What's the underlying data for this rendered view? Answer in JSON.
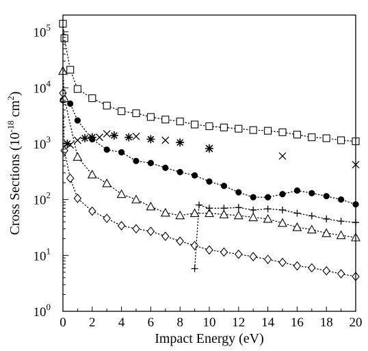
{
  "chart_data": {
    "type": "scatter",
    "title": "",
    "xlabel": "Impact Energy (eV)",
    "ylabel": {
      "prefix": "Cross Sections (10",
      "exp": "-18",
      "mid": " cm",
      "exp2": "2",
      "suffix": ")"
    },
    "xlim": [
      0,
      20
    ],
    "ylim": [
      1,
      200000
    ],
    "yscale": "log",
    "grid": false,
    "legend": "none",
    "x_ticks": [
      "0",
      "2",
      "4",
      "6",
      "8",
      "10",
      "12",
      "14",
      "16",
      "18",
      "20"
    ],
    "y_ticks": [
      {
        "base": "10",
        "exp": "0",
        "value": 1
      },
      {
        "base": "10",
        "exp": "1",
        "value": 10
      },
      {
        "base": "10",
        "exp": "2",
        "value": 100
      },
      {
        "base": "10",
        "exp": "3",
        "value": 1000
      },
      {
        "base": "10",
        "exp": "4",
        "value": 10000
      },
      {
        "base": "10",
        "exp": "5",
        "value": 100000
      }
    ],
    "series": [
      {
        "marker": "square",
        "line": "dotted",
        "points": [
          [
            0,
            140000
          ],
          [
            0.1,
            77000
          ],
          [
            0.5,
            21000
          ],
          [
            1,
            9500
          ],
          [
            2,
            6500
          ],
          [
            3,
            4800
          ],
          [
            4,
            3800
          ],
          [
            5,
            3500
          ],
          [
            6,
            3000
          ],
          [
            7,
            2700
          ],
          [
            8,
            2500
          ],
          [
            9,
            2200
          ],
          [
            10,
            2050
          ],
          [
            11,
            1950
          ],
          [
            12,
            1850
          ],
          [
            13,
            1750
          ],
          [
            14,
            1700
          ],
          [
            15,
            1600
          ],
          [
            16,
            1450
          ],
          [
            17,
            1300
          ],
          [
            18,
            1250
          ],
          [
            19,
            1150
          ],
          [
            20,
            1100
          ]
        ]
      },
      {
        "marker": "filled-circle",
        "line": "dotted",
        "points": [
          [
            0,
            6000
          ],
          [
            0.5,
            5200
          ],
          [
            1,
            2600
          ],
          [
            2,
            1200
          ],
          [
            3,
            780
          ],
          [
            4,
            700
          ],
          [
            5,
            490
          ],
          [
            6,
            450
          ],
          [
            7,
            370
          ],
          [
            8,
            310
          ],
          [
            9,
            270
          ],
          [
            10,
            210
          ],
          [
            11,
            175
          ],
          [
            12,
            135
          ],
          [
            13,
            110
          ],
          [
            14,
            110
          ],
          [
            15,
            125
          ],
          [
            16,
            145
          ],
          [
            17,
            130
          ],
          [
            18,
            115
          ],
          [
            19,
            100
          ],
          [
            20,
            82
          ]
        ]
      },
      {
        "marker": "triangle",
        "line": "dotted",
        "points": [
          [
            0,
            20000
          ],
          [
            0.1,
            6500
          ],
          [
            1,
            580
          ],
          [
            2,
            280
          ],
          [
            3,
            195
          ],
          [
            4,
            125
          ],
          [
            5,
            100
          ],
          [
            6,
            75
          ],
          [
            7,
            58
          ],
          [
            8,
            52
          ],
          [
            9,
            57
          ],
          [
            10,
            57
          ],
          [
            11,
            54
          ],
          [
            12,
            52
          ],
          [
            13,
            48
          ],
          [
            14,
            45
          ],
          [
            15,
            38
          ],
          [
            16,
            32
          ],
          [
            17,
            29
          ],
          [
            18,
            25
          ],
          [
            19,
            23
          ],
          [
            20,
            21
          ]
        ]
      },
      {
        "marker": "diamond",
        "line": "dotted",
        "points": [
          [
            0,
            8000
          ],
          [
            0.1,
            750
          ],
          [
            0.5,
            240
          ],
          [
            1,
            105
          ],
          [
            2,
            62
          ],
          [
            3,
            46
          ],
          [
            4,
            34
          ],
          [
            5,
            30
          ],
          [
            6,
            27
          ],
          [
            7,
            22
          ],
          [
            8,
            18
          ],
          [
            9,
            15
          ],
          [
            10,
            12.5
          ],
          [
            11,
            11.5
          ],
          [
            12,
            10.5
          ],
          [
            13,
            9.5
          ],
          [
            14,
            8.5
          ],
          [
            15,
            7.5
          ],
          [
            16,
            6.5
          ],
          [
            17,
            6
          ],
          [
            18,
            5.3
          ],
          [
            19,
            4.7
          ],
          [
            20,
            4.2
          ]
        ]
      },
      {
        "marker": "plus",
        "line": "dotted",
        "points": [
          [
            9,
            5.8
          ],
          [
            9.3,
            80
          ],
          [
            10,
            70
          ],
          [
            11,
            70
          ],
          [
            12,
            72
          ],
          [
            13,
            65
          ],
          [
            14,
            68
          ],
          [
            15,
            65
          ],
          [
            16,
            57
          ],
          [
            17,
            51
          ],
          [
            18,
            45
          ],
          [
            19,
            41
          ],
          [
            20,
            39
          ]
        ]
      },
      {
        "marker": "cross",
        "line": "none",
        "points": [
          [
            0.5,
            950
          ],
          [
            1,
            1150
          ],
          [
            2.5,
            1300
          ],
          [
            3,
            1500
          ],
          [
            5,
            1350
          ],
          [
            7,
            1150
          ],
          [
            10,
            820
          ],
          [
            15,
            600
          ],
          [
            20,
            420
          ]
        ]
      },
      {
        "marker": "asterisk",
        "line": "none",
        "points": [
          [
            0.3,
            1000
          ],
          [
            1.5,
            1250
          ],
          [
            2,
            1300
          ],
          [
            3.5,
            1400
          ],
          [
            4.5,
            1300
          ],
          [
            6,
            1200
          ],
          [
            8,
            1050
          ],
          [
            10,
            820
          ]
        ]
      }
    ]
  }
}
